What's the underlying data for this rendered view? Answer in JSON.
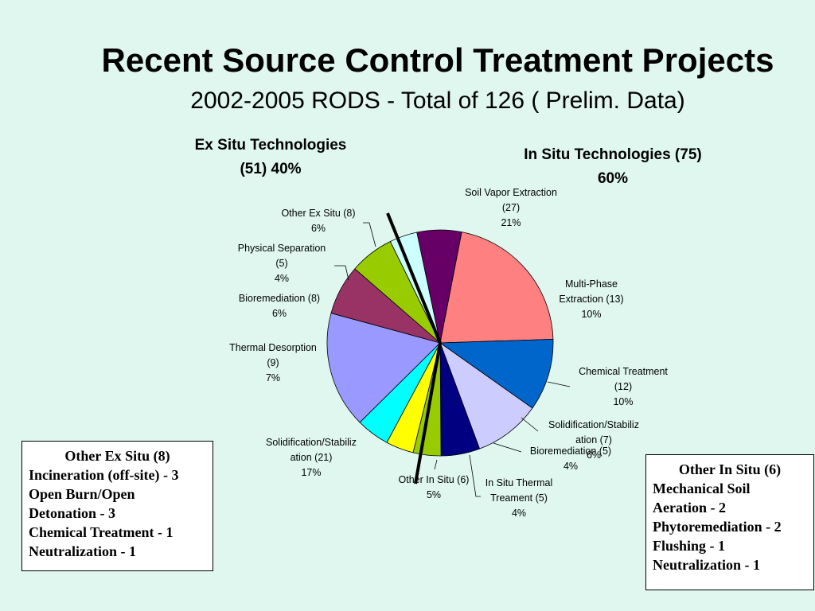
{
  "title": "Recent Source Control Treatment Projects",
  "subtitle": "2002-2005 RODS - Total of 126 ( Prelim. Data)",
  "ex_situ_group": {
    "line1": "Ex Situ Technologies",
    "line2": "(51)  40%"
  },
  "in_situ_group": {
    "line1": "In Situ Technologies (75)",
    "line2": "60%"
  },
  "chart_data": {
    "type": "pie",
    "total": 126,
    "slices": [
      {
        "label": [
          "Soil Vapor Extraction",
          "(27)",
          "21%"
        ],
        "value": 27,
        "percent": 21,
        "color": "#ff8080",
        "group": "in-situ"
      },
      {
        "label": [
          "Multi-Phase",
          "Extraction (13)",
          "10%"
        ],
        "value": 13,
        "percent": 10,
        "color": "#0066cc",
        "group": "in-situ"
      },
      {
        "label": [
          "Chemical Treatment",
          "(12)",
          "10%"
        ],
        "value": 12,
        "percent": 10,
        "color": "#ccccff",
        "group": "in-situ"
      },
      {
        "label": [
          "Solidification/Stabiliz",
          "ation (7)",
          "6%"
        ],
        "value": 7,
        "percent": 6,
        "color": "#000080",
        "group": "in-situ"
      },
      {
        "label": [
          "Bioremediation (5)",
          "4%"
        ],
        "value": 5,
        "percent": 4,
        "color": "#99cc00",
        "group": "in-situ"
      },
      {
        "label": [
          "In Situ Thermal",
          "Treament (5)",
          "4%"
        ],
        "value": 5,
        "percent": 4,
        "color": "#ffff00",
        "group": "in-situ"
      },
      {
        "label": [
          "Other In Situ (6)",
          "5%"
        ],
        "value": 6,
        "percent": 5,
        "color": "#00ffff",
        "group": "in-situ"
      },
      {
        "label": [
          "Solidification/Stabiliz",
          "ation (21)",
          "17%"
        ],
        "value": 21,
        "percent": 17,
        "color": "#9999ff",
        "group": "ex-situ"
      },
      {
        "label": [
          "Thermal Desorption",
          "(9)",
          "7%"
        ],
        "value": 9,
        "percent": 7,
        "color": "#993366",
        "group": "ex-situ"
      },
      {
        "label": [
          "Bioremediation (8)",
          "6%"
        ],
        "value": 8,
        "percent": 6,
        "color": "#99cc00",
        "group": "ex-situ"
      },
      {
        "label": [
          "Physical Separation",
          "(5)",
          "4%"
        ],
        "value": 5,
        "percent": 4,
        "color": "#ccffff",
        "group": "ex-situ"
      },
      {
        "label": [
          "Other Ex Situ (8)",
          "6%"
        ],
        "value": 8,
        "percent": 6,
        "color": "#660066",
        "group": "ex-situ"
      }
    ]
  },
  "notes": {
    "ex_situ": {
      "heading": "Other Ex Situ (8)",
      "lines": [
        "Incineration (off-site) - 3",
        "Open Burn/Open",
        "Detonation - 3",
        "Chemical Treatment - 1",
        "Neutralization - 1"
      ]
    },
    "in_situ": {
      "heading": "Other In Situ (6)",
      "lines": [
        "Mechanical Soil",
        "Aeration - 2",
        "Phytoremediation - 2",
        "Flushing - 1",
        "Neutralization - 1"
      ]
    }
  }
}
